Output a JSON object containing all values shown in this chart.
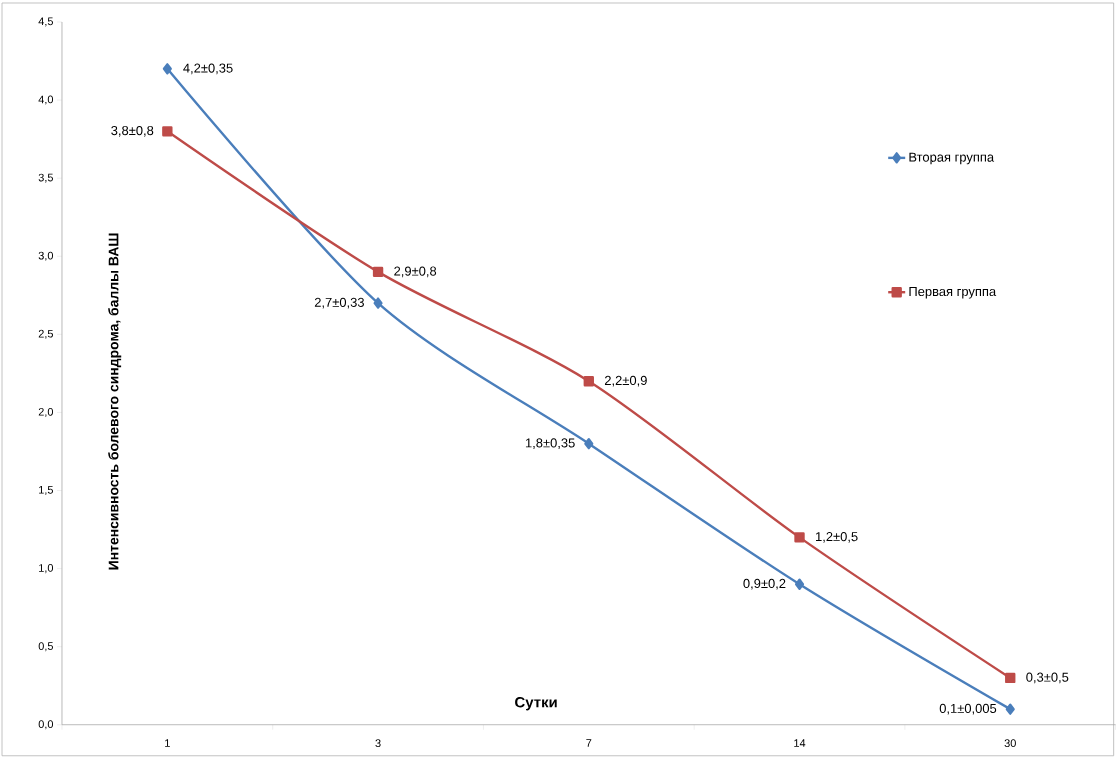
{
  "chart_data": {
    "type": "line",
    "xlabel": "Сутки",
    "ylabel": "Интенсивность болевого синдрома, баллы ВАШ",
    "categories": [
      "1",
      "3",
      "7",
      "14",
      "30"
    ],
    "ylim": [
      0,
      4.5
    ],
    "yticks": [
      {
        "value": 0,
        "label": "0,0"
      },
      {
        "value": 0.5,
        "label": "0,5"
      },
      {
        "value": 1,
        "label": "1,0"
      },
      {
        "value": 1.5,
        "label": "1,5"
      },
      {
        "value": 2,
        "label": "2,0"
      },
      {
        "value": 2.5,
        "label": "2,5"
      },
      {
        "value": 3,
        "label": "3,0"
      },
      {
        "value": 3.5,
        "label": "3,5"
      },
      {
        "value": 4,
        "label": "4,0"
      },
      {
        "value": 4.5,
        "label": "4,5"
      }
    ],
    "series": [
      {
        "name": "Вторая группа",
        "color": "#4a7ebb",
        "marker": "diamond",
        "values": [
          4.2,
          2.7,
          1.8,
          0.9,
          0.1
        ],
        "value_labels": [
          "4,2±0,35",
          "2,7±0,33",
          "1,8±0,35",
          "0,9±0,2",
          "0,1±0,005"
        ]
      },
      {
        "name": "Первая группа",
        "color": "#be4b48",
        "marker": "square",
        "values": [
          3.8,
          2.9,
          2.2,
          1.2,
          0.3
        ],
        "value_labels": [
          "3,8±0,8",
          "2,9±0,8",
          "2,2±0,9",
          "1,2±0,5",
          "0,3±0,5"
        ]
      }
    ],
    "grid": false,
    "legend": "right"
  }
}
